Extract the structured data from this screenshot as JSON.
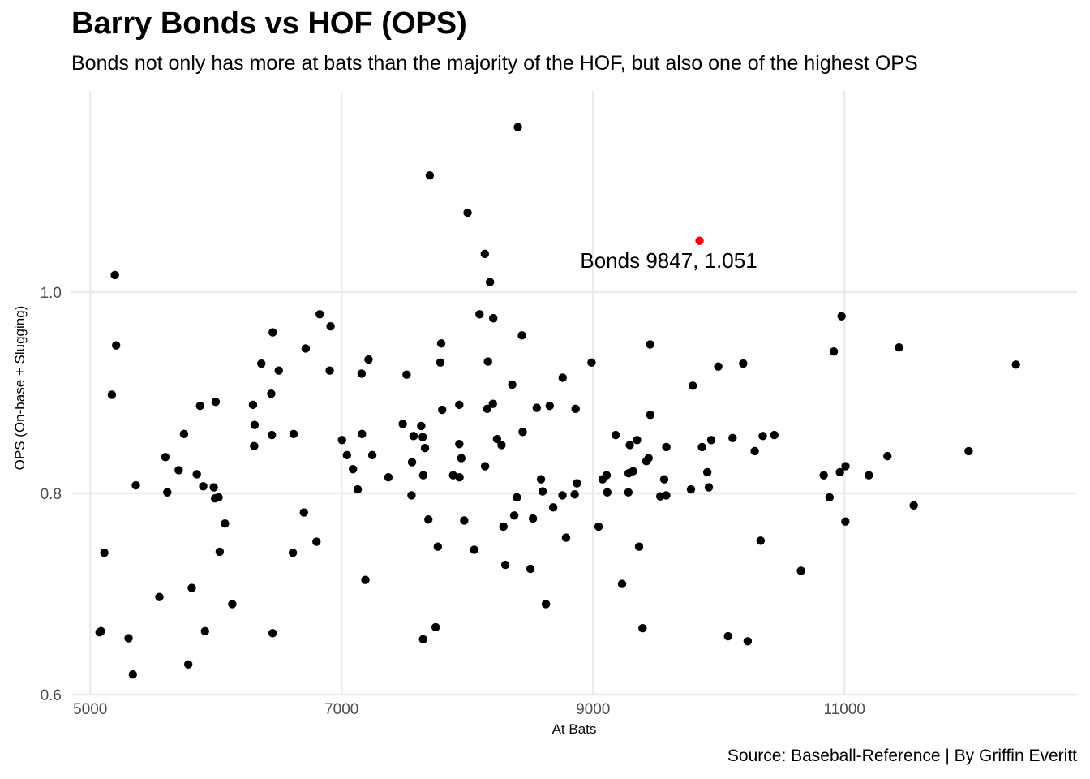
{
  "chart_data": {
    "type": "scatter",
    "title": "Barry Bonds vs HOF (OPS)",
    "subtitle": "Bonds not only has more at bats than the majority of the HOF, but also one of the highest OPS",
    "caption": "Source: Baseball-Reference | By Griffin Everitt",
    "xlabel": "At Bats",
    "ylabel": "OPS (On-base + Slugging)",
    "xlim": [
      4850,
      12850
    ],
    "ylim": [
      0.6,
      1.2
    ],
    "x_ticks": [
      5000,
      7000,
      9000,
      11000
    ],
    "y_ticks": [
      0.6,
      0.8,
      1.0
    ],
    "x_tick_labels": [
      "5000",
      "7000",
      "9000",
      "11000"
    ],
    "y_tick_labels": [
      "0.6",
      "0.8",
      "1.0"
    ],
    "grid": true,
    "legend": "none",
    "colors": {
      "point": "#000000",
      "highlight": "#ff0000",
      "grid": "#ebebeb"
    },
    "highlight": {
      "x": 9847,
      "y": 1.051,
      "label": "Bonds 9847, 1.051"
    },
    "points": [
      [
        8402,
        1.164
      ],
      [
        7701,
        1.116
      ],
      [
        8002,
        1.079
      ],
      [
        8139,
        1.038
      ],
      [
        8180,
        1.01
      ],
      [
        5196,
        1.017
      ],
      [
        5206,
        0.947
      ],
      [
        5172,
        0.898
      ],
      [
        5363,
        0.808
      ],
      [
        5112,
        0.741
      ],
      [
        5074,
        0.662
      ],
      [
        5086,
        0.663
      ],
      [
        5305,
        0.656
      ],
      [
        5339,
        0.62
      ],
      [
        5598,
        0.836
      ],
      [
        5613,
        0.801
      ],
      [
        5704,
        0.823
      ],
      [
        5746,
        0.859
      ],
      [
        5550,
        0.697
      ],
      [
        5808,
        0.706
      ],
      [
        5780,
        0.63
      ],
      [
        5874,
        0.887
      ],
      [
        5848,
        0.819
      ],
      [
        5899,
        0.807
      ],
      [
        5913,
        0.663
      ],
      [
        5983,
        0.806
      ],
      [
        5998,
        0.891
      ],
      [
        5993,
        0.795
      ],
      [
        6021,
        0.796
      ],
      [
        6030,
        0.742
      ],
      [
        6072,
        0.77
      ],
      [
        6130,
        0.69
      ],
      [
        6295,
        0.888
      ],
      [
        6308,
        0.868
      ],
      [
        6304,
        0.847
      ],
      [
        6361,
        0.929
      ],
      [
        6440,
        0.899
      ],
      [
        6452,
        0.96
      ],
      [
        6445,
        0.858
      ],
      [
        6500,
        0.922
      ],
      [
        6451,
        0.661
      ],
      [
        6618,
        0.859
      ],
      [
        6612,
        0.741
      ],
      [
        6714,
        0.944
      ],
      [
        6700,
        0.781
      ],
      [
        6800,
        0.752
      ],
      [
        6826,
        0.978
      ],
      [
        6912,
        0.966
      ],
      [
        6905,
        0.922
      ],
      [
        7003,
        0.853
      ],
      [
        7042,
        0.838
      ],
      [
        7090,
        0.824
      ],
      [
        7128,
        0.804
      ],
      [
        7159,
        0.919
      ],
      [
        7162,
        0.859
      ],
      [
        7189,
        0.714
      ],
      [
        7214,
        0.933
      ],
      [
        7244,
        0.838
      ],
      [
        7372,
        0.816
      ],
      [
        7486,
        0.869
      ],
      [
        7517,
        0.918
      ],
      [
        7560,
        0.831
      ],
      [
        7572,
        0.857
      ],
      [
        7556,
        0.798
      ],
      [
        7633,
        0.867
      ],
      [
        7645,
        0.856
      ],
      [
        7649,
        0.818
      ],
      [
        7663,
        0.845
      ],
      [
        7648,
        0.655
      ],
      [
        7690,
        0.774
      ],
      [
        7748,
        0.667
      ],
      [
        7765,
        0.747
      ],
      [
        7785,
        0.93
      ],
      [
        7792,
        0.949
      ],
      [
        7800,
        0.883
      ],
      [
        7887,
        0.818
      ],
      [
        7936,
        0.888
      ],
      [
        7936,
        0.849
      ],
      [
        7938,
        0.816
      ],
      [
        7952,
        0.835
      ],
      [
        7975,
        0.773
      ],
      [
        8054,
        0.744
      ],
      [
        8097,
        0.978
      ],
      [
        8141,
        0.827
      ],
      [
        8158,
        0.884
      ],
      [
        8164,
        0.931
      ],
      [
        8206,
        0.974
      ],
      [
        8203,
        0.889
      ],
      [
        8236,
        0.854
      ],
      [
        8272,
        0.848
      ],
      [
        8287,
        0.767
      ],
      [
        8302,
        0.729
      ],
      [
        8357,
        0.908
      ],
      [
        8373,
        0.778
      ],
      [
        8394,
        0.796
      ],
      [
        8434,
        0.957
      ],
      [
        8440,
        0.861
      ],
      [
        8502,
        0.725
      ],
      [
        8522,
        0.775
      ],
      [
        8552,
        0.885
      ],
      [
        8586,
        0.814
      ],
      [
        8599,
        0.802
      ],
      [
        8625,
        0.69
      ],
      [
        8655,
        0.887
      ],
      [
        8683,
        0.786
      ],
      [
        8758,
        0.915
      ],
      [
        8757,
        0.798
      ],
      [
        8785,
        0.756
      ],
      [
        8854,
        0.799
      ],
      [
        8861,
        0.884
      ],
      [
        8872,
        0.81
      ],
      [
        8988,
        0.93
      ],
      [
        9044,
        0.767
      ],
      [
        9076,
        0.814
      ],
      [
        9108,
        0.818
      ],
      [
        9113,
        0.801
      ],
      [
        9180,
        0.858
      ],
      [
        9231,
        0.71
      ],
      [
        9281,
        0.801
      ],
      [
        9283,
        0.82
      ],
      [
        9292,
        0.848
      ],
      [
        9318,
        0.822
      ],
      [
        9350,
        0.853
      ],
      [
        9366,
        0.747
      ],
      [
        9394,
        0.666
      ],
      [
        9424,
        0.832
      ],
      [
        9442,
        0.835
      ],
      [
        9454,
        0.948
      ],
      [
        9455,
        0.878
      ],
      [
        9535,
        0.797
      ],
      [
        9566,
        0.814
      ],
      [
        9583,
        0.846
      ],
      [
        9582,
        0.798
      ],
      [
        9779,
        0.804
      ],
      [
        9793,
        0.907
      ],
      [
        9867,
        0.846
      ],
      [
        9909,
        0.821
      ],
      [
        9921,
        0.806
      ],
      [
        9940,
        0.853
      ],
      [
        9996,
        0.926
      ],
      [
        10074,
        0.658
      ],
      [
        10110,
        0.855
      ],
      [
        10194,
        0.929
      ],
      [
        10230,
        0.653
      ],
      [
        10286,
        0.842
      ],
      [
        10333,
        0.753
      ],
      [
        10350,
        0.857
      ],
      [
        10442,
        0.858
      ],
      [
        10654,
        0.723
      ],
      [
        10835,
        0.818
      ],
      [
        10881,
        0.796
      ],
      [
        10915,
        0.941
      ],
      [
        10964,
        0.821
      ],
      [
        10977,
        0.976
      ],
      [
        11008,
        0.827
      ],
      [
        11007,
        0.772
      ],
      [
        11194,
        0.818
      ],
      [
        11342,
        0.837
      ],
      [
        11434,
        0.945
      ],
      [
        11551,
        0.788
      ],
      [
        11988,
        0.842
      ],
      [
        12364,
        0.928
      ]
    ]
  }
}
